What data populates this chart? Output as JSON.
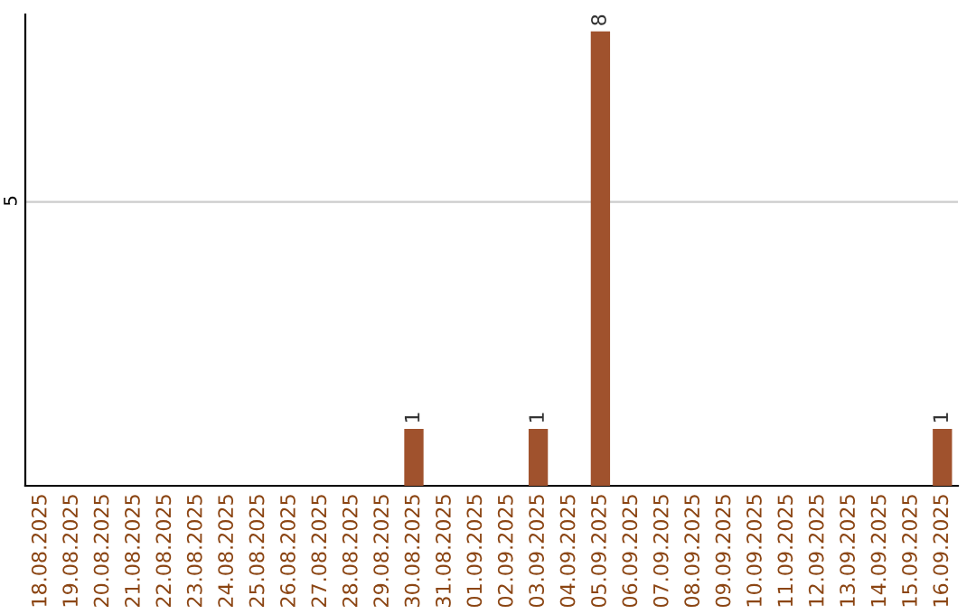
{
  "chart_data": {
    "type": "bar",
    "ylim": [
      0,
      8.3
    ],
    "yticks": [
      5
    ],
    "grid": "y",
    "data_labels": true,
    "categories": [
      "18.08.2025",
      "19.08.2025",
      "20.08.2025",
      "21.08.2025",
      "22.08.2025",
      "23.08.2025",
      "24.08.2025",
      "25.08.2025",
      "26.08.2025",
      "27.08.2025",
      "28.08.2025",
      "29.08.2025",
      "30.08.2025",
      "31.08.2025",
      "01.09.2025",
      "02.09.2025",
      "03.09.2025",
      "04.09.2025",
      "05.09.2025",
      "06.09.2025",
      "07.09.2025",
      "08.09.2025",
      "09.09.2025",
      "10.09.2025",
      "11.09.2025",
      "12.09.2025",
      "13.09.2025",
      "14.09.2025",
      "15.09.2025",
      "16.09.2025"
    ],
    "values": [
      null,
      null,
      null,
      null,
      null,
      null,
      null,
      null,
      null,
      null,
      null,
      null,
      1,
      null,
      null,
      null,
      1,
      null,
      8,
      null,
      null,
      null,
      null,
      null,
      null,
      null,
      null,
      null,
      null,
      1
    ],
    "color": "#a0522d",
    "legend": false
  }
}
